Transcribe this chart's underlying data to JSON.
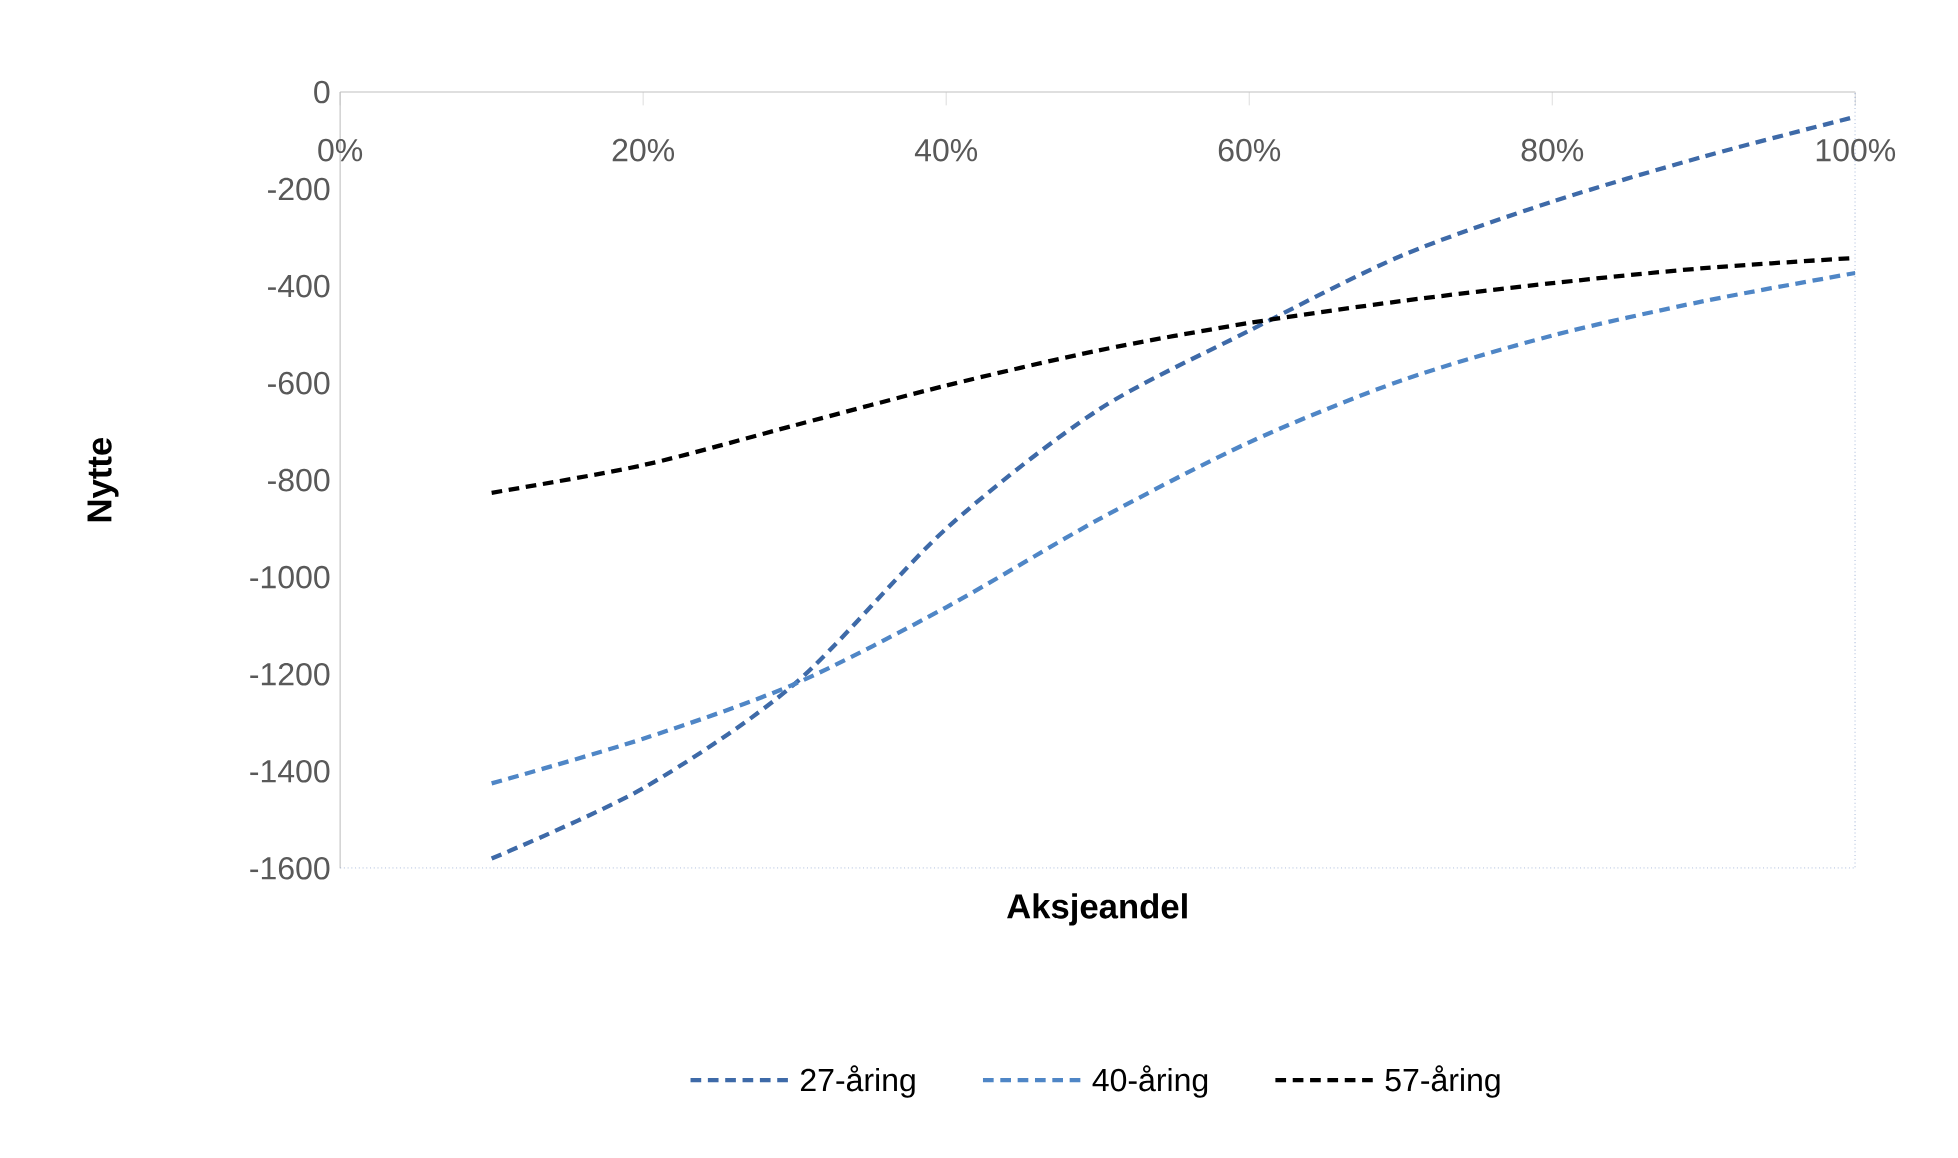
{
  "chart_data": {
    "type": "line",
    "xlabel": "Aksjeandel",
    "ylabel": "Nytte",
    "x": [
      10,
      20,
      30,
      40,
      50,
      60,
      70,
      80,
      90,
      100
    ],
    "series": [
      {
        "name": "27-åring",
        "color": "#3e6aa8",
        "values": [
          -1580,
          -1435,
          -1220,
          -900,
          -656,
          -492,
          -338,
          -226,
          -133,
          -51
        ]
      },
      {
        "name": "40-åring",
        "color": "#4f86c6",
        "values": [
          -1425,
          -1333,
          -1220,
          -1062,
          -882,
          -722,
          -595,
          -502,
          -431,
          -373
        ]
      },
      {
        "name": "57-åring",
        "color": "#000000",
        "values": [
          -826,
          -769,
          -687,
          -605,
          -533,
          -476,
          -431,
          -394,
          -363,
          -342
        ]
      }
    ],
    "xlim": [
      0,
      100
    ],
    "xticks": [
      {
        "value": 0,
        "label": "0%"
      },
      {
        "value": 20,
        "label": "20%"
      },
      {
        "value": 40,
        "label": "40%"
      },
      {
        "value": 60,
        "label": "60%"
      },
      {
        "value": 80,
        "label": "80%"
      },
      {
        "value": 100,
        "label": "100%"
      }
    ],
    "ylim": [
      -1600,
      0
    ],
    "yticks": [
      -1600,
      -1400,
      -1200,
      -1000,
      -800,
      -600,
      -400,
      -200,
      0
    ],
    "grid": false,
    "legend": "bottom",
    "marker": "none",
    "line_style": "dashed"
  }
}
